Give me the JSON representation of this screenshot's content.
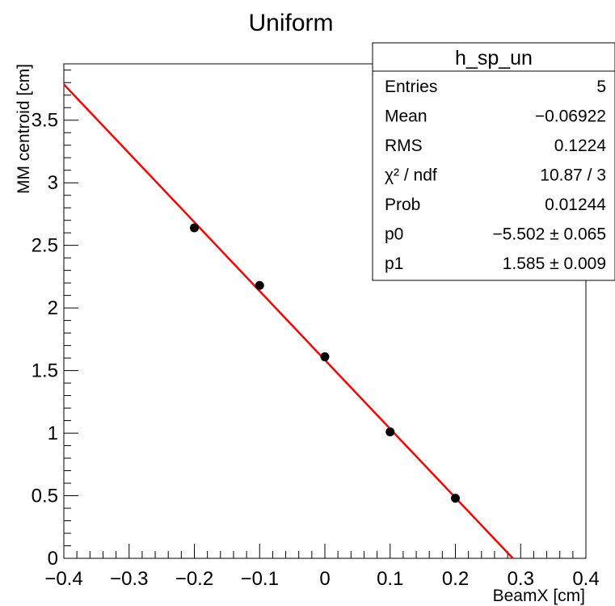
{
  "chart_data": {
    "type": "scatter",
    "title": "Uniform",
    "xlabel": "BeamX [cm]",
    "ylabel": "MM centroid [cm]",
    "xlim": [
      -0.4,
      0.4
    ],
    "ylim": [
      0,
      3.95
    ],
    "x_ticks": [
      "−0.4",
      "−0.3",
      "−0.2",
      "−0.1",
      "0",
      "0.1",
      "0.2",
      "0.3",
      "0.4"
    ],
    "y_ticks": [
      "0",
      "0.5",
      "1",
      "1.5",
      "2",
      "2.5",
      "3",
      "3.5"
    ],
    "x_tick_values": [
      -0.4,
      -0.3,
      -0.2,
      -0.1,
      0,
      0.1,
      0.2,
      0.3,
      0.4
    ],
    "y_tick_values": [
      0,
      0.5,
      1,
      1.5,
      2,
      2.5,
      3,
      3.5
    ],
    "points": [
      {
        "x": -0.2,
        "y": 2.64
      },
      {
        "x": -0.1,
        "y": 2.18
      },
      {
        "x": 0.0,
        "y": 1.61
      },
      {
        "x": 0.1,
        "y": 1.01
      },
      {
        "x": 0.2,
        "y": 0.48
      }
    ],
    "fit": {
      "type": "linear",
      "intercept": 1.585,
      "slope": -5.502,
      "color": "#ff0000"
    },
    "marker_color": "#000000",
    "grid": false,
    "stats_box": {
      "title": "h_sp_un",
      "rows": [
        {
          "label": "Entries",
          "value": "5"
        },
        {
          "label": "Mean",
          "value": "−0.06922"
        },
        {
          "label": "RMS",
          "value": "0.1224"
        },
        {
          "label": "χ² / ndf",
          "value": "10.87 / 3"
        },
        {
          "label": "Prob",
          "value": "0.01244"
        },
        {
          "label": "p0",
          "value": "−5.502 ± 0.065"
        },
        {
          "label": "p1",
          "value": "1.585 ± 0.009"
        }
      ]
    }
  }
}
